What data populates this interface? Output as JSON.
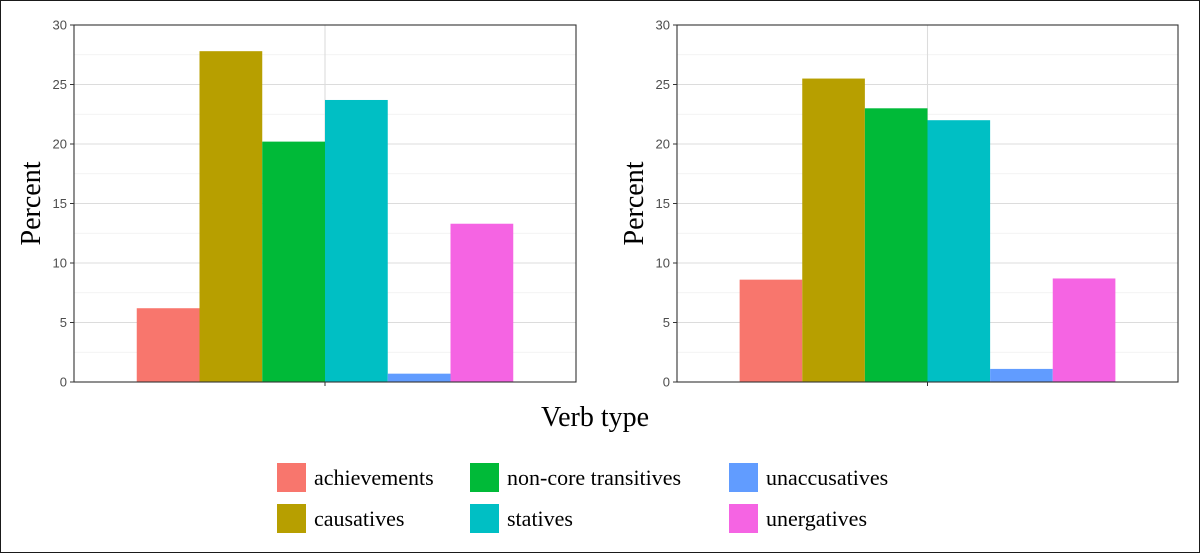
{
  "chart_data": [
    {
      "type": "bar",
      "categories": [
        "achievements",
        "causatives",
        "non-core transitives",
        "statives",
        "unaccusatives",
        "unergatives"
      ],
      "values": [
        6.2,
        27.8,
        20.2,
        23.7,
        0.7,
        13.3
      ],
      "ylabel": "Percent",
      "ylim": [
        0,
        30
      ],
      "yticks": [
        0,
        5,
        10,
        15,
        20,
        25,
        30
      ],
      "grid": true
    },
    {
      "type": "bar",
      "categories": [
        "achievements",
        "causatives",
        "non-core transitives",
        "statives",
        "unaccusatives",
        "unergatives"
      ],
      "values": [
        8.6,
        25.5,
        23.0,
        22.0,
        1.1,
        8.7
      ],
      "ylabel": "Percent",
      "ylim": [
        0,
        30
      ],
      "yticks": [
        0,
        5,
        10,
        15,
        20,
        25,
        30
      ],
      "grid": true
    }
  ],
  "xlabel": "Verb type",
  "legend": {
    "placement": "bottom",
    "items": [
      {
        "label": "achievements",
        "color": "#F8766D"
      },
      {
        "label": "causatives",
        "color": "#B79F00"
      },
      {
        "label": "non-core transitives",
        "color": "#00BA38"
      },
      {
        "label": "statives",
        "color": "#00BFC4"
      },
      {
        "label": "unaccusatives",
        "color": "#619CFF"
      },
      {
        "label": "unergatives",
        "color": "#F564E3"
      }
    ]
  }
}
